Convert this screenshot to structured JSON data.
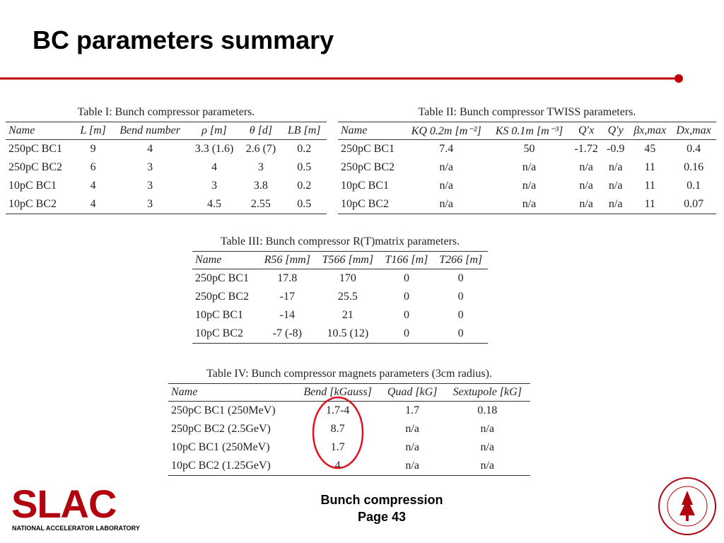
{
  "header": {
    "title": "BC parameters summary"
  },
  "tables": [
    {
      "caption": "Table I: Bunch compressor parameters.",
      "columns": [
        "Name",
        "L [m]",
        "Bend number",
        "ρ [m]",
        "θ [d]",
        "LB [m]"
      ],
      "rows": [
        [
          "250pC BC1",
          "9",
          "4",
          "3.3 (1.6)",
          "2.6 (7)",
          "0.2"
        ],
        [
          "250pC BC2",
          "6",
          "3",
          "4",
          "3",
          "0.5"
        ],
        [
          "10pC BC1",
          "4",
          "3",
          "3",
          "3.8",
          "0.2"
        ],
        [
          "10pC BC2",
          "4",
          "3",
          "4.5",
          "2.55",
          "0.5"
        ]
      ]
    },
    {
      "caption": "Table II: Bunch compressor TWISS parameters.",
      "columns": [
        "Name",
        "KQ 0.2m [m⁻²]",
        "KS 0.1m [m⁻³]",
        "Q′x",
        "Q′y",
        "βx,max",
        "Dx,max"
      ],
      "rows": [
        [
          "250pC BC1",
          "7.4",
          "50",
          "-1.72",
          "-0.9",
          "45",
          "0.4"
        ],
        [
          "250pC BC2",
          "n/a",
          "n/a",
          "n/a",
          "n/a",
          "11",
          "0.16"
        ],
        [
          "10pC BC1",
          "n/a",
          "n/a",
          "n/a",
          "n/a",
          "11",
          "0.1"
        ],
        [
          "10pC BC2",
          "n/a",
          "n/a",
          "n/a",
          "n/a",
          "11",
          "0.07"
        ]
      ]
    },
    {
      "caption": "Table III: Bunch compressor R(T)matrix parameters.",
      "columns": [
        "Name",
        "R56 [mm]",
        "T566 [mm]",
        "T166 [m]",
        "T266 [m]"
      ],
      "rows": [
        [
          "250pC BC1",
          "17.8",
          "170",
          "0",
          "0"
        ],
        [
          "250pC BC2",
          "-17",
          "25.5",
          "0",
          "0"
        ],
        [
          "10pC BC1",
          "-14",
          "21",
          "0",
          "0"
        ],
        [
          "10pC BC2",
          "-7 (-8)",
          "10.5 (12)",
          "0",
          "0"
        ]
      ]
    },
    {
      "caption": "Table IV: Bunch compressor magnets parameters (3cm radius).",
      "columns": [
        "Name",
        "Bend [kGauss]",
        "Quad [kG]",
        "Sextupole [kG]"
      ],
      "rows": [
        [
          "250pC BC1 (250MeV)",
          "1.7-4",
          "1.7",
          "0.18"
        ],
        [
          "250pC BC2 (2.5GeV)",
          "8.7",
          "n/a",
          "n/a"
        ],
        [
          "10pC BC1 (250MeV)",
          "1.7",
          "n/a",
          "n/a"
        ],
        [
          "10pC BC2 (1.25GeV)",
          "4",
          "n/a",
          "n/a"
        ]
      ]
    }
  ],
  "footer": {
    "logo": "SLAC",
    "logo_subtitle": "NATIONAL ACCELERATOR LABORATORY",
    "topic": "Bunch compression",
    "page": "Page 43"
  }
}
